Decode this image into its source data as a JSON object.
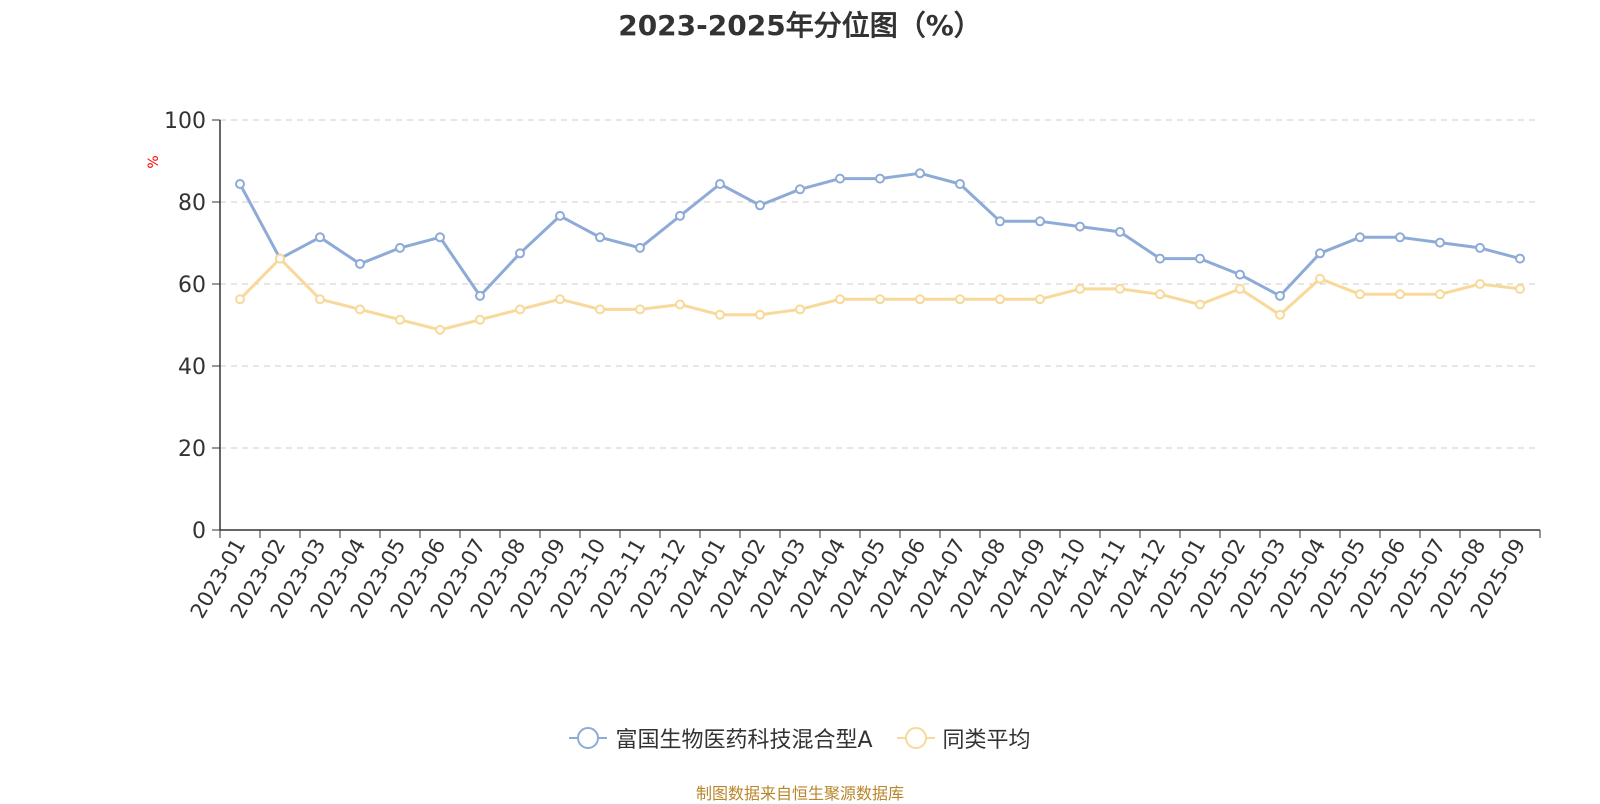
{
  "chart_data": {
    "type": "line",
    "title": "2023-2025年分位图（%）",
    "ylabel": "%",
    "ylim": [
      0,
      100
    ],
    "yticks": [
      0,
      20,
      40,
      60,
      80,
      100
    ],
    "grid": true,
    "legend_position": "bottom",
    "categories": [
      "2023-01",
      "2023-02",
      "2023-03",
      "2023-04",
      "2023-05",
      "2023-06",
      "2023-07",
      "2023-08",
      "2023-09",
      "2023-10",
      "2023-11",
      "2023-12",
      "2024-01",
      "2024-02",
      "2024-03",
      "2024-04",
      "2024-05",
      "2024-06",
      "2024-07",
      "2024-08",
      "2024-09",
      "2024-10",
      "2024-11",
      "2024-12",
      "2025-01",
      "2025-02",
      "2025-03",
      "2025-04",
      "2025-05",
      "2025-06",
      "2025-07",
      "2025-08",
      "2025-09"
    ],
    "series": [
      {
        "name": "富国生物医药科技混合型A",
        "color": "#8eabd8",
        "values": [
          84.4,
          66.2,
          71.4,
          64.9,
          68.8,
          71.4,
          57.1,
          67.5,
          76.6,
          71.4,
          68.8,
          76.6,
          84.4,
          79.2,
          83.1,
          85.7,
          85.7,
          87.0,
          84.4,
          75.3,
          75.3,
          74.0,
          72.7,
          66.2,
          66.2,
          62.3,
          57.1,
          67.5,
          71.4,
          71.4,
          70.1,
          68.8,
          66.2
        ]
      },
      {
        "name": "同类平均",
        "color": "#f8d99a",
        "values": [
          56.3,
          66.2,
          56.3,
          53.8,
          51.3,
          48.8,
          51.3,
          53.8,
          56.3,
          53.8,
          53.8,
          55.0,
          52.5,
          52.5,
          53.8,
          56.3,
          56.3,
          56.3,
          56.3,
          56.3,
          56.3,
          58.8,
          58.8,
          57.5,
          55.0,
          58.8,
          52.5,
          61.3,
          57.5,
          57.5,
          57.5,
          60.0,
          58.8
        ]
      }
    ]
  },
  "footer": {
    "source": "制图数据来自恒生聚源数据库"
  },
  "colors": {
    "axis": "#333333",
    "grid": "#cccccc",
    "ylabel": "#ff0000",
    "source": "#b8862b"
  }
}
